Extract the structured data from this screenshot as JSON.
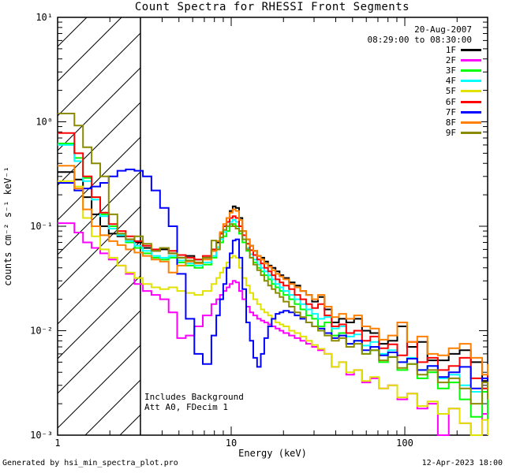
{
  "title": "Count Spectra for RHESSI Front Segments",
  "header": {
    "date": "20-Aug-2007",
    "time_range": "08:29:00 to 08:30:00"
  },
  "annotations": {
    "line1": "Includes Background",
    "line2": "Att A0, FDecim 1"
  },
  "footer": {
    "left": "Generated by hsi_min_spectra_plot.pro",
    "right": "12-Apr-2023 18:00"
  },
  "chart_data": {
    "type": "line",
    "mode": "histogram-steps",
    "title": "Count Spectra for RHESSI Front Segments",
    "xlabel": "Energy (keV)",
    "ylabel": "counts cm⁻² s⁻¹ keV⁻¹",
    "xscale": "log",
    "yscale": "log",
    "xlim": [
      1,
      300
    ],
    "ylim": [
      0.001,
      10
    ],
    "x_major_ticks": [
      1,
      10,
      100
    ],
    "x_tick_labels": [
      "1",
      "10",
      "100"
    ],
    "y_major_ticks": [
      10,
      1,
      0.1,
      0.01,
      0.001
    ],
    "y_tick_labels": [
      "10¹",
      "10⁰",
      "10⁻¹",
      "10⁻²",
      "10⁻³"
    ],
    "grid": false,
    "legend_position": "top-right",
    "hatched_region": {
      "from": 1,
      "to": 3
    },
    "x_bins": [
      1.0,
      1.12,
      1.25,
      1.4,
      1.57,
      1.76,
      1.97,
      2.21,
      2.47,
      2.77,
      3.1,
      3.47,
      3.89,
      4.36,
      4.88,
      5.47,
      6.13,
      6.86,
      7.69,
      8.2,
      8.61,
      9.0,
      9.4,
      9.8,
      10.2,
      10.6,
      11.1,
      11.6,
      12.2,
      12.8,
      13.4,
      14.1,
      14.8,
      15.5,
      16.3,
      17.1,
      18.0,
      19.0,
      20.0,
      21.5,
      23.2,
      25.0,
      27.0,
      29.2,
      31.6,
      34.5,
      37.9,
      41.7,
      46.0,
      51.0,
      56.7,
      63.3,
      71.0,
      80.0,
      90.5,
      103,
      118,
      135,
      155,
      179,
      207,
      240,
      279,
      300
    ],
    "series": [
      {
        "name": "1F",
        "color": "#000000",
        "values": [
          0.33,
          0.33,
          0.28,
          0.19,
          0.13,
          0.1,
          0.085,
          0.08,
          0.075,
          0.07,
          0.062,
          0.058,
          0.06,
          0.055,
          0.05,
          0.052,
          0.048,
          0.05,
          0.058,
          0.07,
          0.085,
          0.1,
          0.12,
          0.14,
          0.155,
          0.15,
          0.12,
          0.09,
          0.075,
          0.065,
          0.058,
          0.052,
          0.05,
          0.046,
          0.042,
          0.04,
          0.037,
          0.034,
          0.032,
          0.029,
          0.027,
          0.024,
          0.022,
          0.019,
          0.021,
          0.016,
          0.012,
          0.013,
          0.012,
          0.013,
          0.01,
          0.0095,
          0.0075,
          0.008,
          0.011,
          0.007,
          0.0078,
          0.0052,
          0.0052,
          0.006,
          0.0065,
          0.005,
          0.0033,
          0.004
        ]
      },
      {
        "name": "2F",
        "color": "#FF00FF",
        "values": [
          0.107,
          0.107,
          0.087,
          0.07,
          0.062,
          0.055,
          0.048,
          0.042,
          0.035,
          0.028,
          0.024,
          0.022,
          0.02,
          0.015,
          0.0085,
          0.009,
          0.011,
          0.014,
          0.018,
          0.02,
          0.022,
          0.024,
          0.026,
          0.028,
          0.03,
          0.029,
          0.024,
          0.02,
          0.017,
          0.015,
          0.014,
          0.013,
          0.0125,
          0.012,
          0.0115,
          0.011,
          0.0105,
          0.01,
          0.0095,
          0.009,
          0.0085,
          0.008,
          0.0075,
          0.007,
          0.0065,
          0.006,
          0.0045,
          0.005,
          0.0038,
          0.0042,
          0.0032,
          0.0035,
          0.0028,
          0.003,
          0.0022,
          0.0025,
          0.0018,
          0.002,
          0.001,
          0.0018,
          0.0013,
          0.001,
          0.0016,
          0.0012
        ]
      },
      {
        "name": "3F",
        "color": "#00FF00",
        "values": [
          0.62,
          0.62,
          0.45,
          0.29,
          0.19,
          0.13,
          0.1,
          0.085,
          0.07,
          0.062,
          0.055,
          0.05,
          0.048,
          0.05,
          0.045,
          0.042,
          0.04,
          0.043,
          0.05,
          0.06,
          0.07,
          0.08,
          0.09,
          0.1,
          0.105,
          0.1,
          0.085,
          0.07,
          0.058,
          0.05,
          0.045,
          0.04,
          0.037,
          0.034,
          0.031,
          0.028,
          0.026,
          0.024,
          0.022,
          0.02,
          0.018,
          0.016,
          0.014,
          0.013,
          0.011,
          0.012,
          0.009,
          0.0095,
          0.0075,
          0.008,
          0.006,
          0.0065,
          0.005,
          0.0056,
          0.0042,
          0.0048,
          0.0035,
          0.004,
          0.0028,
          0.0032,
          0.0022,
          0.0015,
          0.0026,
          0.0012
        ]
      },
      {
        "name": "4F",
        "color": "#00FFFF",
        "values": [
          0.6,
          0.6,
          0.42,
          0.27,
          0.18,
          0.125,
          0.095,
          0.082,
          0.072,
          0.065,
          0.058,
          0.052,
          0.05,
          0.052,
          0.047,
          0.044,
          0.042,
          0.045,
          0.052,
          0.063,
          0.075,
          0.088,
          0.1,
          0.11,
          0.115,
          0.11,
          0.09,
          0.075,
          0.062,
          0.054,
          0.048,
          0.043,
          0.04,
          0.037,
          0.034,
          0.031,
          0.028,
          0.026,
          0.024,
          0.022,
          0.02,
          0.018,
          0.016,
          0.0145,
          0.013,
          0.0135,
          0.0105,
          0.011,
          0.0088,
          0.0092,
          0.0072,
          0.0078,
          0.006,
          0.0065,
          0.005,
          0.0055,
          0.0042,
          0.0046,
          0.0035,
          0.0038,
          0.003,
          0.0026,
          0.0028,
          0.0024
        ]
      },
      {
        "name": "5F",
        "color": "#E2E200",
        "values": [
          0.27,
          0.27,
          0.24,
          0.12,
          0.08,
          0.06,
          0.05,
          0.042,
          0.036,
          0.032,
          0.028,
          0.026,
          0.025,
          0.026,
          0.024,
          0.023,
          0.022,
          0.024,
          0.028,
          0.032,
          0.036,
          0.04,
          0.045,
          0.05,
          0.052,
          0.05,
          0.04,
          0.032,
          0.027,
          0.023,
          0.02,
          0.018,
          0.016,
          0.015,
          0.014,
          0.013,
          0.012,
          0.0115,
          0.011,
          0.01,
          0.0095,
          0.0088,
          0.008,
          0.0073,
          0.0067,
          0.006,
          0.0045,
          0.005,
          0.004,
          0.0042,
          0.0033,
          0.0036,
          0.0028,
          0.003,
          0.0023,
          0.0025,
          0.0019,
          0.0021,
          0.0016,
          0.0018,
          0.0013,
          0.001,
          0.0014,
          0.001
        ]
      },
      {
        "name": "6F",
        "color": "#FF0000",
        "values": [
          0.78,
          0.78,
          0.5,
          0.3,
          0.19,
          0.135,
          0.105,
          0.09,
          0.08,
          0.072,
          0.065,
          0.06,
          0.062,
          0.058,
          0.053,
          0.05,
          0.048,
          0.052,
          0.06,
          0.072,
          0.085,
          0.1,
          0.11,
          0.12,
          0.125,
          0.12,
          0.1,
          0.082,
          0.068,
          0.059,
          0.053,
          0.048,
          0.044,
          0.04,
          0.037,
          0.034,
          0.031,
          0.029,
          0.027,
          0.025,
          0.022,
          0.02,
          0.018,
          0.0165,
          0.018,
          0.014,
          0.011,
          0.0115,
          0.0095,
          0.01,
          0.008,
          0.0088,
          0.0068,
          0.0074,
          0.0058,
          0.0078,
          0.005,
          0.0055,
          0.0042,
          0.0046,
          0.0055,
          0.0035,
          0.0028,
          0.0038
        ]
      },
      {
        "name": "7F",
        "color": "#0000FF",
        "values": [
          0.26,
          0.26,
          0.22,
          0.23,
          0.24,
          0.26,
          0.3,
          0.34,
          0.35,
          0.34,
          0.3,
          0.22,
          0.15,
          0.1,
          0.035,
          0.013,
          0.006,
          0.0048,
          0.009,
          0.014,
          0.02,
          0.028,
          0.04,
          0.055,
          0.073,
          0.075,
          0.05,
          0.025,
          0.012,
          0.008,
          0.0055,
          0.0045,
          0.006,
          0.0085,
          0.011,
          0.013,
          0.0145,
          0.015,
          0.0155,
          0.015,
          0.014,
          0.013,
          0.012,
          0.011,
          0.0105,
          0.0095,
          0.0085,
          0.009,
          0.0075,
          0.008,
          0.0065,
          0.007,
          0.0058,
          0.0062,
          0.005,
          0.0054,
          0.0042,
          0.0046,
          0.0036,
          0.004,
          0.0045,
          0.0028,
          0.0035,
          0.003
        ]
      },
      {
        "name": "8F",
        "color": "#FF8000",
        "values": [
          0.38,
          0.38,
          0.23,
          0.145,
          0.1,
          0.082,
          0.072,
          0.066,
          0.06,
          0.056,
          0.052,
          0.048,
          0.046,
          0.036,
          0.042,
          0.046,
          0.044,
          0.048,
          0.058,
          0.072,
          0.088,
          0.105,
          0.12,
          0.135,
          0.145,
          0.14,
          0.115,
          0.09,
          0.075,
          0.065,
          0.058,
          0.052,
          0.048,
          0.044,
          0.041,
          0.038,
          0.035,
          0.033,
          0.031,
          0.028,
          0.026,
          0.024,
          0.022,
          0.02,
          0.022,
          0.017,
          0.0135,
          0.0145,
          0.013,
          0.014,
          0.011,
          0.0105,
          0.0082,
          0.009,
          0.012,
          0.0078,
          0.0088,
          0.006,
          0.0058,
          0.0068,
          0.0075,
          0.0055,
          0.0038,
          0.0048
        ]
      },
      {
        "name": "9F",
        "color": "#8B8B00",
        "values": [
          1.2,
          1.2,
          0.92,
          0.57,
          0.4,
          0.3,
          0.13,
          0.085,
          0.075,
          0.08,
          0.068,
          0.058,
          0.062,
          0.055,
          0.05,
          0.047,
          0.045,
          0.05,
          0.073,
          0.06,
          0.078,
          0.092,
          0.1,
          0.105,
          0.1,
          0.095,
          0.09,
          0.075,
          0.06,
          0.05,
          0.043,
          0.038,
          0.034,
          0.03,
          0.027,
          0.025,
          0.023,
          0.021,
          0.019,
          0.017,
          0.015,
          0.0135,
          0.012,
          0.011,
          0.01,
          0.009,
          0.008,
          0.0085,
          0.007,
          0.0075,
          0.006,
          0.0065,
          0.0052,
          0.0056,
          0.0044,
          0.0048,
          0.0038,
          0.0042,
          0.0032,
          0.0035,
          0.0028,
          0.002,
          0.0032,
          0.0022
        ]
      }
    ]
  }
}
